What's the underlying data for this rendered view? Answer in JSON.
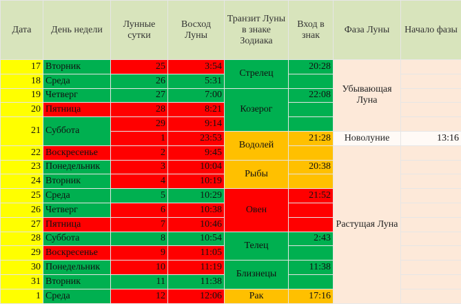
{
  "header": [
    "Дата",
    "День недели",
    "Лунные сутки",
    "Восход Луны",
    "Транзит Луны в знаке Зодиака",
    "Вход в знак",
    "Фаза Луны",
    "Начало фазы"
  ],
  "days": [
    {
      "date": "17",
      "weekday": "Вторник"
    },
    {
      "date": "18",
      "weekday": "Среда"
    },
    {
      "date": "19",
      "weekday": "Четверг"
    },
    {
      "date": "20",
      "weekday": "Пятница"
    },
    {
      "date": "21",
      "weekday": "Суббота"
    },
    {
      "date": "22",
      "weekday": "Воскресенье"
    },
    {
      "date": "23",
      "weekday": "Понедельник"
    },
    {
      "date": "24",
      "weekday": "Вторник"
    },
    {
      "date": "25",
      "weekday": "Среда"
    },
    {
      "date": "26",
      "weekday": "Четверг"
    },
    {
      "date": "27",
      "weekday": "Пятница"
    },
    {
      "date": "28",
      "weekday": "Суббота"
    },
    {
      "date": "29",
      "weekday": "Воскресенье"
    },
    {
      "date": "30",
      "weekday": "Понедельник"
    },
    {
      "date": "31",
      "weekday": "Вторник"
    },
    {
      "date": "1",
      "weekday": "Среда"
    }
  ],
  "lunar": [
    {
      "day": "25",
      "moonrise": "3:54"
    },
    {
      "day": "26",
      "moonrise": "5:31"
    },
    {
      "day": "27",
      "moonrise": "7:00"
    },
    {
      "day": "28",
      "moonrise": "8:21"
    },
    {
      "day": "29",
      "moonrise": "9:14"
    },
    {
      "day": "1",
      "moonrise": "23:53"
    },
    {
      "day": "2",
      "moonrise": "9:45"
    },
    {
      "day": "3",
      "moonrise": "10:04"
    },
    {
      "day": "4",
      "moonrise": "10:19"
    },
    {
      "day": "5",
      "moonrise": "10:29"
    },
    {
      "day": "6",
      "moonrise": "10:38"
    },
    {
      "day": "7",
      "moonrise": "10:46"
    },
    {
      "day": "8",
      "moonrise": "10:54"
    },
    {
      "day": "9",
      "moonrise": "11:05"
    },
    {
      "day": "10",
      "moonrise": "11:19"
    },
    {
      "day": "11",
      "moonrise": "11:38"
    },
    {
      "day": "12",
      "moonrise": "12:06"
    }
  ],
  "zodiac": [
    {
      "sign": "Стрелец",
      "entry": "20:28"
    },
    {
      "sign": "Козерог",
      "entry": "22:08"
    },
    {
      "sign": "Водолей",
      "entry": "21:28"
    },
    {
      "sign": "Рыбы",
      "entry": "20:38"
    },
    {
      "sign": "Овен",
      "entry": "21:52"
    },
    {
      "sign": "Телец",
      "entry": "2:43"
    },
    {
      "sign": "Близнецы",
      "entry": "11:38"
    },
    {
      "sign": "Рак",
      "entry": "17:16"
    }
  ],
  "phases": [
    {
      "phase": "Убывающая Луна"
    },
    {
      "phase": "Новолуние",
      "start": "13:16"
    },
    {
      "phase": "Растущая Луна"
    }
  ]
}
